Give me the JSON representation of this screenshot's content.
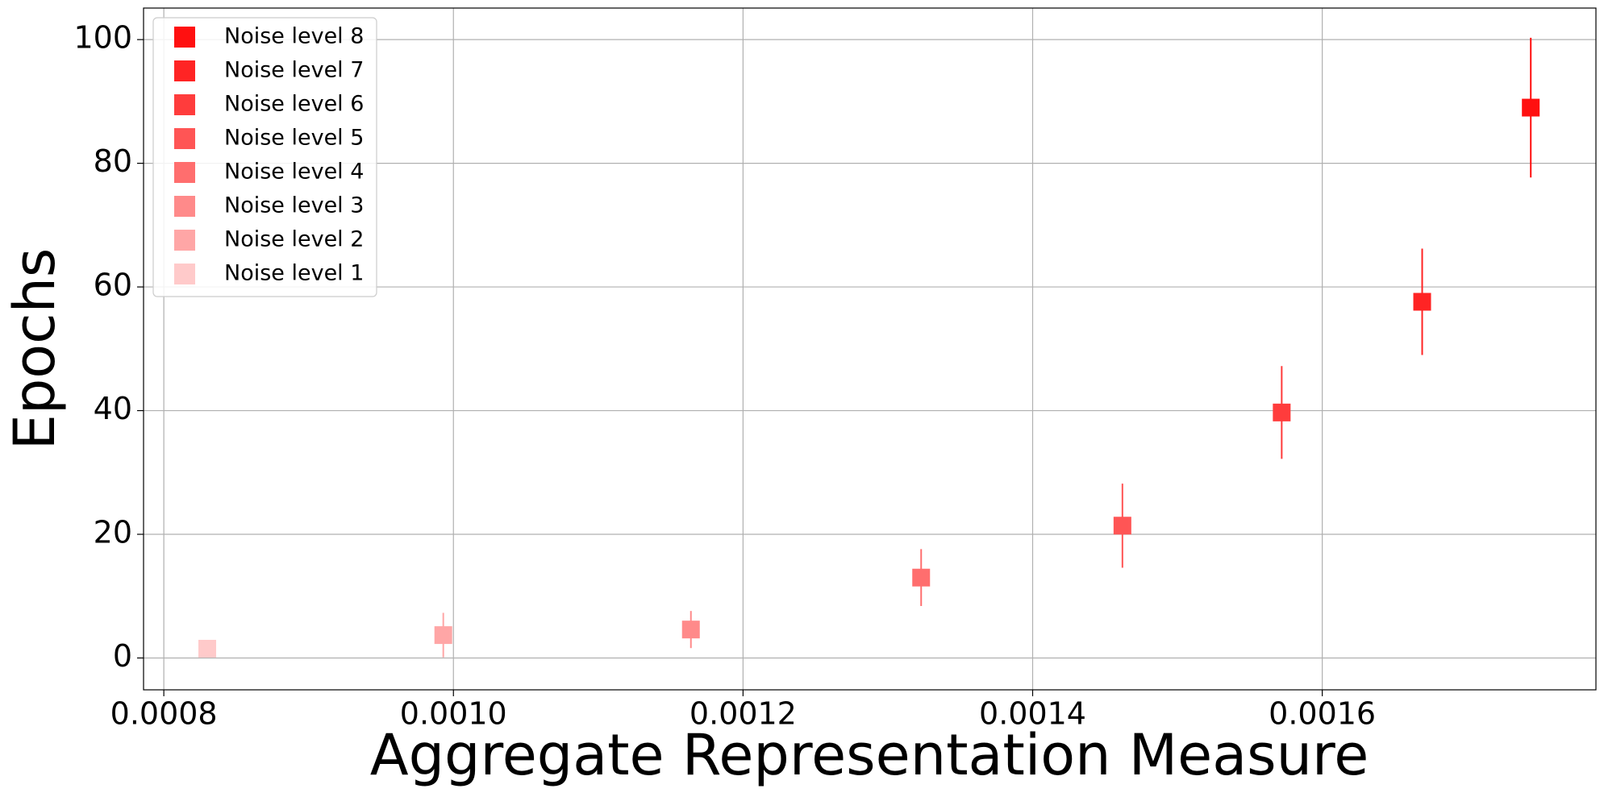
{
  "chart_data": {
    "type": "errorbar",
    "xlabel": "Aggregate Representation Measure",
    "ylabel": "Epochs",
    "xlim": [
      0.000786,
      0.001789
    ],
    "ylim": [
      -5.15,
      105.1
    ],
    "xticks": [
      0.0008,
      {
        "value": 0.001,
        "label": "0.0010"
      },
      0.0012,
      0.0014,
      0.0016
    ],
    "yticks": [
      0,
      20,
      40,
      60,
      80,
      100
    ],
    "grid": true,
    "legend": "upper left",
    "series": [
      {
        "name": "Noise level 8",
        "color": "#ff1010",
        "x": [
          0.001744
        ],
        "values": [
          89.0
        ],
        "errors": [
          11.3
        ]
      },
      {
        "name": "Noise level 7",
        "color": "#ff2424",
        "x": [
          0.001669
        ],
        "values": [
          57.6
        ],
        "errors": [
          8.6
        ]
      },
      {
        "name": "Noise level 6",
        "color": "#ff3c3c",
        "x": [
          0.001572
        ],
        "values": [
          39.7
        ],
        "errors": [
          7.5
        ]
      },
      {
        "name": "Noise level 5",
        "color": "#ff5555",
        "x": [
          0.001462
        ],
        "values": [
          21.4
        ],
        "errors": [
          6.8
        ]
      },
      {
        "name": "Noise level 4",
        "color": "#ff6e6e",
        "x": [
          0.001323
        ],
        "values": [
          13.0
        ],
        "errors": [
          4.6
        ]
      },
      {
        "name": "Noise level 3",
        "color": "#ff8a8a",
        "x": [
          0.001164
        ],
        "values": [
          4.6
        ],
        "errors": [
          3.0
        ]
      },
      {
        "name": "Noise level 2",
        "color": "#ffa6a6",
        "x": [
          0.000993
        ],
        "values": [
          3.7
        ],
        "errors": [
          3.6
        ]
      },
      {
        "name": "Noise level 1",
        "color": "#ffcaca",
        "x": [
          0.00083
        ],
        "values": [
          1.5
        ],
        "errors": [
          0.5
        ]
      }
    ]
  }
}
